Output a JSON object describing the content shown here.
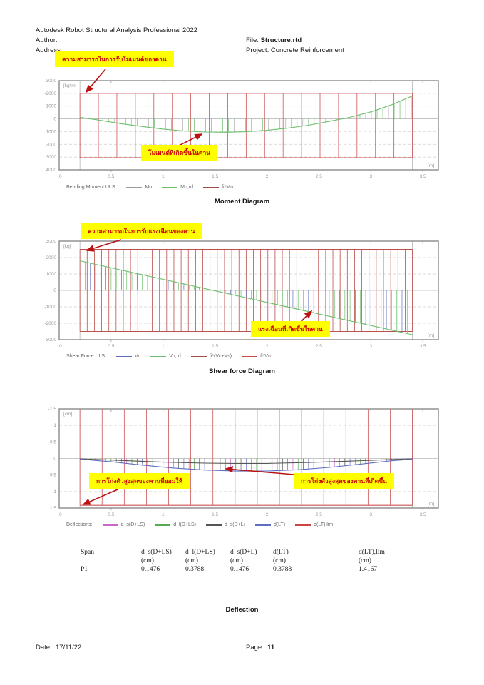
{
  "header": {
    "app_title": "Autodesk Robot Structural Analysis Professional 2022",
    "author_label": "Author:",
    "address_label": "Address:",
    "file_label": "File:",
    "file_value": "Structure.rtd",
    "project_label": "Project:",
    "project_value": "Concrete Reinforcement"
  },
  "annotations": {
    "moment_capacity": "ความสามารถในการรับโมเมนต์ของคาน",
    "moment_occurring": "โมเมนต์ที่เกิดขึ้นในคาน",
    "shear_capacity": "ความสามารถในการรับแรงเฉือนของคาน",
    "shear_occurring": "แรงเฉือนที่เกิดขึ้นในคาน",
    "deflection_allowable": "การโก่งตัวสูงสุดของคานที่ยอมให้",
    "deflection_occurring": "การโก่งตัวสูงสุดของคานที่เกิดขึ้น"
  },
  "sections": {
    "moment_title": "Moment Diagram",
    "shear_title": "Shear force Diagram",
    "deflection_title": "Deflection"
  },
  "chart_data": [
    {
      "type": "line",
      "title": "Moment Diagram",
      "legend_label": "Bending Moment ULS:",
      "legend": [
        {
          "name": "Mu",
          "color": "#9a9a9a"
        },
        {
          "name": "Mu,rd",
          "color": "#6dbf6d"
        },
        {
          "name": "fi*Mn",
          "color": "#a04a46"
        }
      ],
      "y_unit": "[kg*m]",
      "x_unit": "[m]",
      "ylim": [
        -3000,
        4000
      ],
      "yticks": [
        -3000,
        -2000,
        -1000,
        0,
        1000,
        2000,
        3000,
        4000
      ],
      "ytick_labels": [
        "-3000",
        "-2000",
        "-1000",
        "0",
        "1000",
        "2000",
        "3000",
        "4000"
      ],
      "xlim": [
        0,
        3.65
      ],
      "xticks": [
        0,
        0.5,
        1,
        1.5,
        2,
        2.5,
        3,
        3.5
      ],
      "xtick_labels": [
        "0",
        "0.5",
        "1",
        "1.5",
        "2",
        "2.5",
        "3",
        "3.5"
      ],
      "beam": {
        "start": 0.2,
        "end": 3.4
      },
      "envelope": {
        "top": -2000,
        "bottom": 3050,
        "spacing": 0.18,
        "color": "#cc5555",
        "cap_top": true,
        "cap_bottom": true
      },
      "hatch": {
        "spacing": 0.055,
        "colors": [
          "#6dbf6d",
          "#6dbf6d",
          "#aaaaaa"
        ]
      },
      "curves": [
        {
          "name": "Mu,rd",
          "color": "#6dbf6d",
          "points": [
            [
              0.2,
              -120
            ],
            [
              0.4,
              120
            ],
            [
              0.6,
              380
            ],
            [
              0.8,
              600
            ],
            [
              1.0,
              800
            ],
            [
              1.2,
              950
            ],
            [
              1.4,
              1030
            ],
            [
              1.6,
              1050
            ],
            [
              1.8,
              1010
            ],
            [
              2.0,
              900
            ],
            [
              2.2,
              730
            ],
            [
              2.4,
              500
            ],
            [
              2.6,
              200
            ],
            [
              2.8,
              -120
            ],
            [
              3.0,
              -550
            ],
            [
              3.2,
              -1100
            ],
            [
              3.4,
              -1800
            ]
          ]
        }
      ]
    },
    {
      "type": "line",
      "title": "Shear force Diagram",
      "legend_label": "Shear Force ULS:",
      "legend": [
        {
          "name": "Vu",
          "color": "#5f6fbf"
        },
        {
          "name": "Vu,rd",
          "color": "#6dbf6d"
        },
        {
          "name": "fi*(Vc+Vs)",
          "color": "#a04a46"
        },
        {
          "name": "fi*Vn",
          "color": "#cc4444"
        }
      ],
      "y_unit": "[kg]",
      "x_unit": "[m]",
      "ylim": [
        3000,
        -3000
      ],
      "yticks": [
        3000,
        2000,
        1000,
        0,
        -1000,
        -2000,
        -3000
      ],
      "ytick_labels": [
        "3000",
        "2000",
        "1000",
        "0",
        "-1000",
        "-2000",
        "-3000"
      ],
      "xlim": [
        0,
        3.65
      ],
      "xticks": [
        0,
        0.5,
        1,
        1.5,
        2,
        2.5,
        3,
        3.5
      ],
      "xtick_labels": [
        "0",
        "0.5",
        "1",
        "1.5",
        "2",
        "2.5",
        "3",
        "3.5"
      ],
      "beam": {
        "start": 0.2,
        "end": 3.4
      },
      "envelope": {
        "top": 2500,
        "bottom": -2500,
        "spacing": 0.07,
        "color": "#bb4f4c",
        "cap_top": true,
        "cap_bottom": true
      },
      "hatch": {
        "spacing": 0.05,
        "colors": [
          "#6dbf6d",
          "#5f6fbf",
          "#6dbf6d"
        ]
      },
      "curves": [
        {
          "name": "Vu,rd",
          "color": "#6dbf6d",
          "points": [
            [
              0.2,
              1800
            ],
            [
              3.4,
              -2700
            ]
          ]
        }
      ]
    },
    {
      "type": "line",
      "title": "Deflection",
      "legend_label": "Deflections:",
      "legend": [
        {
          "name": "d_s(D+LS)",
          "color": "#cc66cc"
        },
        {
          "name": "d_l(D+LS)",
          "color": "#55aa55"
        },
        {
          "name": "d_s(D+L)",
          "color": "#555555"
        },
        {
          "name": "d(LT)",
          "color": "#5f6fbf"
        },
        {
          "name": "d(LT),lim",
          "color": "#cc4444"
        }
      ],
      "y_unit": "[cm]",
      "x_unit": "[m]",
      "ylim": [
        -1.5,
        1.5
      ],
      "yticks": [
        -1.5,
        -1,
        -0.5,
        0,
        0.5,
        1,
        1.5
      ],
      "ytick_labels": [
        "-1.5",
        "-1",
        "-0.5",
        "0",
        "0.5",
        "1",
        "1.5"
      ],
      "xlim": [
        0,
        3.65
      ],
      "xticks": [
        0,
        0.5,
        1,
        1.5,
        2,
        2.5,
        3,
        3.5
      ],
      "xtick_labels": [
        "0",
        "0.5",
        "1",
        "1.5",
        "2",
        "2.5",
        "3",
        "3.5"
      ],
      "beam": {
        "start": 0.2,
        "end": 3.4
      },
      "envelope": {
        "top": -1.5,
        "bottom": 1.4167,
        "spacing": 0.22,
        "color": "#cc5555",
        "cap_top": false,
        "cap_bottom": true
      },
      "hatch": {
        "spacing": 0.05,
        "colors": [
          "#cc66cc",
          "#55aa55",
          "#555555",
          "#5f6fbf"
        ]
      },
      "curves": [
        {
          "name": "d_s(D+L)",
          "color": "#555555",
          "points": [
            [
              0.2,
              0.01
            ],
            [
              0.6,
              0.06
            ],
            [
              1.0,
              0.11
            ],
            [
              1.4,
              0.14
            ],
            [
              1.7,
              0.15
            ],
            [
              2.0,
              0.15
            ],
            [
              2.4,
              0.12
            ],
            [
              2.8,
              0.08
            ],
            [
              3.2,
              0.03
            ],
            [
              3.4,
              0.01
            ]
          ]
        },
        {
          "name": "d(LT)",
          "color": "#5f6fbf",
          "points": [
            [
              0.2,
              0.02
            ],
            [
              0.5,
              0.1
            ],
            [
              0.8,
              0.2
            ],
            [
              1.1,
              0.29
            ],
            [
              1.4,
              0.35
            ],
            [
              1.7,
              0.38
            ],
            [
              2.0,
              0.38
            ],
            [
              2.3,
              0.34
            ],
            [
              2.6,
              0.27
            ],
            [
              2.9,
              0.17
            ],
            [
              3.2,
              0.07
            ],
            [
              3.4,
              0.02
            ]
          ]
        }
      ]
    }
  ],
  "table": {
    "headers": [
      "Span",
      "d_s(D+LS)",
      "d_l(D+LS)",
      "d_s(D+L)",
      "d(LT)",
      "d(LT),lim"
    ],
    "units": [
      "",
      "(cm)",
      "(cm)",
      "(cm)",
      "(cm)",
      "(cm)"
    ],
    "rows": [
      [
        "P1",
        "0.1476",
        "0.3788",
        "0.1476",
        "0.3788",
        "1.4167"
      ]
    ]
  },
  "footer": {
    "date_label": "Date : ",
    "date_value": "17/11/22",
    "page_label": "Page : ",
    "page_value": "11"
  }
}
